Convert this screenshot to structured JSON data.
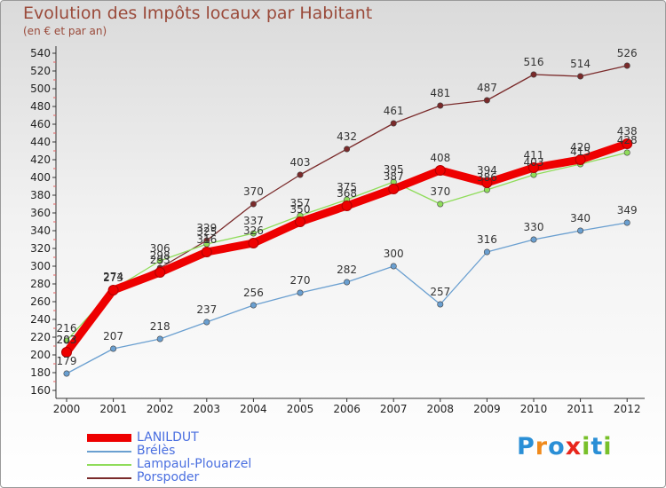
{
  "header": {
    "title": "Evolution des Impôts locaux par Habitant",
    "subtitle": "(en € et par an)"
  },
  "brand": {
    "text": "Proxiti",
    "letters": [
      "P",
      "r",
      "o",
      "x",
      "i",
      "t",
      "i"
    ],
    "colors": [
      "#2a8fd6",
      "#f08a1c",
      "#2a8fd6",
      "#e8261c",
      "#78c02a",
      "#2a8fd6",
      "#78c02a"
    ]
  },
  "chart_data": {
    "type": "line",
    "x": [
      "2000",
      "2001",
      "2002",
      "2003",
      "2004",
      "2005",
      "2006",
      "2007",
      "2008",
      "2009",
      "2010",
      "2011",
      "2012"
    ],
    "ylim": [
      160,
      540
    ],
    "yticks": [
      160,
      180,
      200,
      220,
      240,
      260,
      280,
      300,
      320,
      340,
      360,
      380,
      400,
      420,
      440,
      460,
      480,
      500,
      520,
      540
    ],
    "grid": false,
    "legend_position": "bottom-left",
    "series": [
      {
        "name": "LANILDUT",
        "color": "#ee0000",
        "values": [
          203,
          273,
          293,
          316,
          326,
          350,
          368,
          387,
          408,
          394,
          411,
          420,
          438
        ]
      },
      {
        "name": "Brélès",
        "color": "#6a9fd0",
        "values": [
          179,
          207,
          218,
          237,
          256,
          270,
          282,
          300,
          257,
          316,
          330,
          340,
          349
        ]
      },
      {
        "name": "Lampaul-Plouarzel",
        "color": "#8fdc5a",
        "values": [
          216,
          274,
          306,
          325,
          337,
          357,
          375,
          395,
          370,
          386,
          403,
          415,
          428
        ]
      },
      {
        "name": "Porspoder",
        "color": "#7a2a2a",
        "values": [
          203,
          274,
          298,
          329,
          370,
          403,
          432,
          461,
          481,
          487,
          516,
          514,
          526
        ]
      }
    ]
  }
}
